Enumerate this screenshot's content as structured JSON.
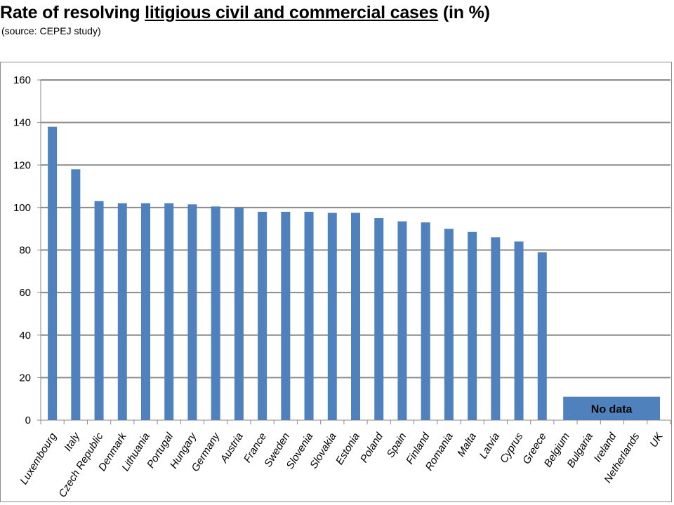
{
  "header": {
    "title_prefix": "Rate of resolving ",
    "title_underlined": "litigious civil and commercial cases",
    "title_suffix": " (in %)",
    "subtitle": "(source: CEPEJ study)"
  },
  "chart_data": {
    "type": "bar",
    "categories": [
      "Luxembourg",
      "Italy",
      "Czech Republic",
      "Denmark",
      "Lithuania",
      "Portugal",
      "Hungary",
      "Germany",
      "Austria",
      "France",
      "Sweden",
      "Slovenia",
      "Slovakia",
      "Estonia",
      "Poland",
      "Spain",
      "Finland",
      "Romania",
      "Malta",
      "Latvia",
      "Cyprus",
      "Greece",
      "Belgium",
      "Bulgaria",
      "Ireland",
      "Netherlands",
      "UK"
    ],
    "values": [
      138,
      118,
      103,
      102,
      102,
      102,
      101.5,
      100.5,
      100,
      98,
      98,
      98,
      97.5,
      97.5,
      95,
      93.5,
      93,
      90,
      88.5,
      86,
      84,
      79,
      null,
      null,
      null,
      null,
      null
    ],
    "ylim": [
      0,
      160
    ],
    "yticks": [
      0,
      20,
      40,
      60,
      80,
      100,
      120,
      140,
      160
    ],
    "grid": true,
    "bar_color": "#4f81bd",
    "no_data": {
      "label": "No data",
      "from_category": "Belgium",
      "to_category": "UK",
      "value": 11
    }
  }
}
